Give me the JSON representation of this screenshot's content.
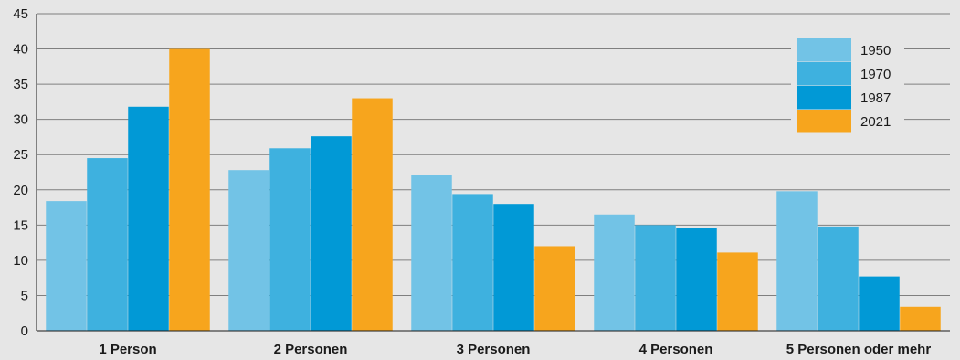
{
  "chart_data": {
    "type": "bar",
    "categories": [
      "1 Person",
      "2 Personen",
      "3 Personen",
      "4 Personen",
      "5 Personen oder mehr"
    ],
    "series": [
      {
        "name": "1950",
        "color": "#72c3e6",
        "values": [
          18.4,
          22.8,
          22.1,
          16.5,
          19.8
        ]
      },
      {
        "name": "1970",
        "color": "#3eb1df",
        "values": [
          24.5,
          25.9,
          19.4,
          15.0,
          14.8
        ]
      },
      {
        "name": "1987",
        "color": "#0199d6",
        "values": [
          31.8,
          27.6,
          18.0,
          14.6,
          7.7
        ]
      },
      {
        "name": "2021",
        "color": "#f7a51d",
        "values": [
          40.0,
          33.0,
          12.0,
          11.1,
          3.4
        ]
      }
    ],
    "title": "",
    "xlabel": "",
    "ylabel": "",
    "ylim": [
      0,
      45
    ],
    "yticks": [
      0,
      5,
      10,
      15,
      20,
      25,
      30,
      35,
      40,
      45
    ],
    "grid": true,
    "legend_position": "top-right"
  }
}
